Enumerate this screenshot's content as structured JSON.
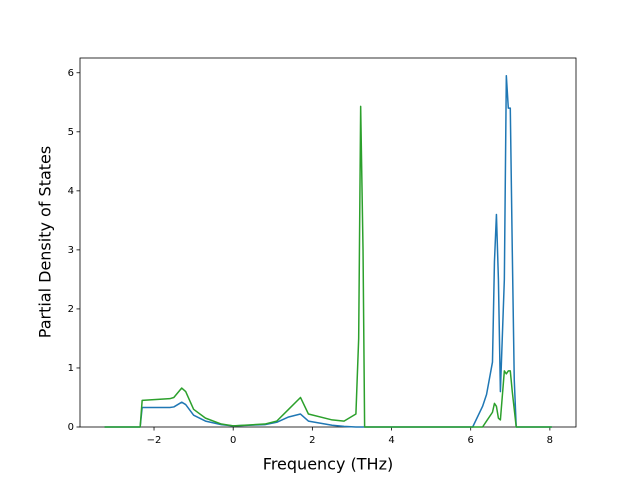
{
  "chart_data": {
    "type": "line",
    "x_label": "Frequency (THz)",
    "y_label": "Partial Density of States",
    "x": [
      -3.25,
      -2.35,
      -2.3,
      -1.6,
      -1.5,
      -1.3,
      -1.2,
      -1.0,
      -0.7,
      -0.3,
      0,
      0.8,
      1.1,
      1.4,
      1.7,
      1.9,
      2.5,
      2.8,
      3.1,
      3.17,
      3.22,
      3.28,
      3.32,
      6.05,
      6.3,
      6.4,
      6.55,
      6.6,
      6.65,
      6.7,
      6.75,
      6.85,
      6.9,
      6.95,
      7.0,
      7.05,
      7.1,
      7.15,
      8.05
    ],
    "series": [
      {
        "color": "#1f77b4",
        "values": [
          0,
          0,
          0.33,
          0.33,
          0.34,
          0.42,
          0.38,
          0.2,
          0.1,
          0.04,
          0.02,
          0.04,
          0.08,
          0.17,
          0.22,
          0.1,
          0.03,
          0.01,
          0,
          0,
          0,
          0,
          0,
          0,
          0.35,
          0.55,
          1.1,
          2.8,
          3.6,
          2.5,
          0.6,
          2.5,
          5.95,
          5.4,
          5.4,
          3.0,
          0.8,
          0,
          0
        ]
      },
      {
        "color": "#2ca02c",
        "values": [
          0,
          0,
          0.45,
          0.48,
          0.5,
          0.66,
          0.6,
          0.3,
          0.15,
          0.05,
          0.02,
          0.05,
          0.1,
          0.3,
          0.5,
          0.22,
          0.12,
          0.1,
          0.22,
          1.5,
          5.43,
          3.0,
          0,
          0,
          0,
          0.1,
          0.25,
          0.4,
          0.35,
          0.15,
          0.12,
          0.95,
          0.9,
          0.95,
          0.95,
          0.6,
          0.3,
          0,
          0
        ]
      }
    ],
    "xlim": [
      -3.87,
      8.66
    ],
    "ylim": [
      0,
      6.25
    ],
    "xticks": [
      {
        "value": -2,
        "label": "−2"
      },
      0,
      2,
      4,
      6,
      8
    ],
    "yticks": [
      0,
      1,
      2,
      3,
      4,
      5,
      6
    ]
  }
}
